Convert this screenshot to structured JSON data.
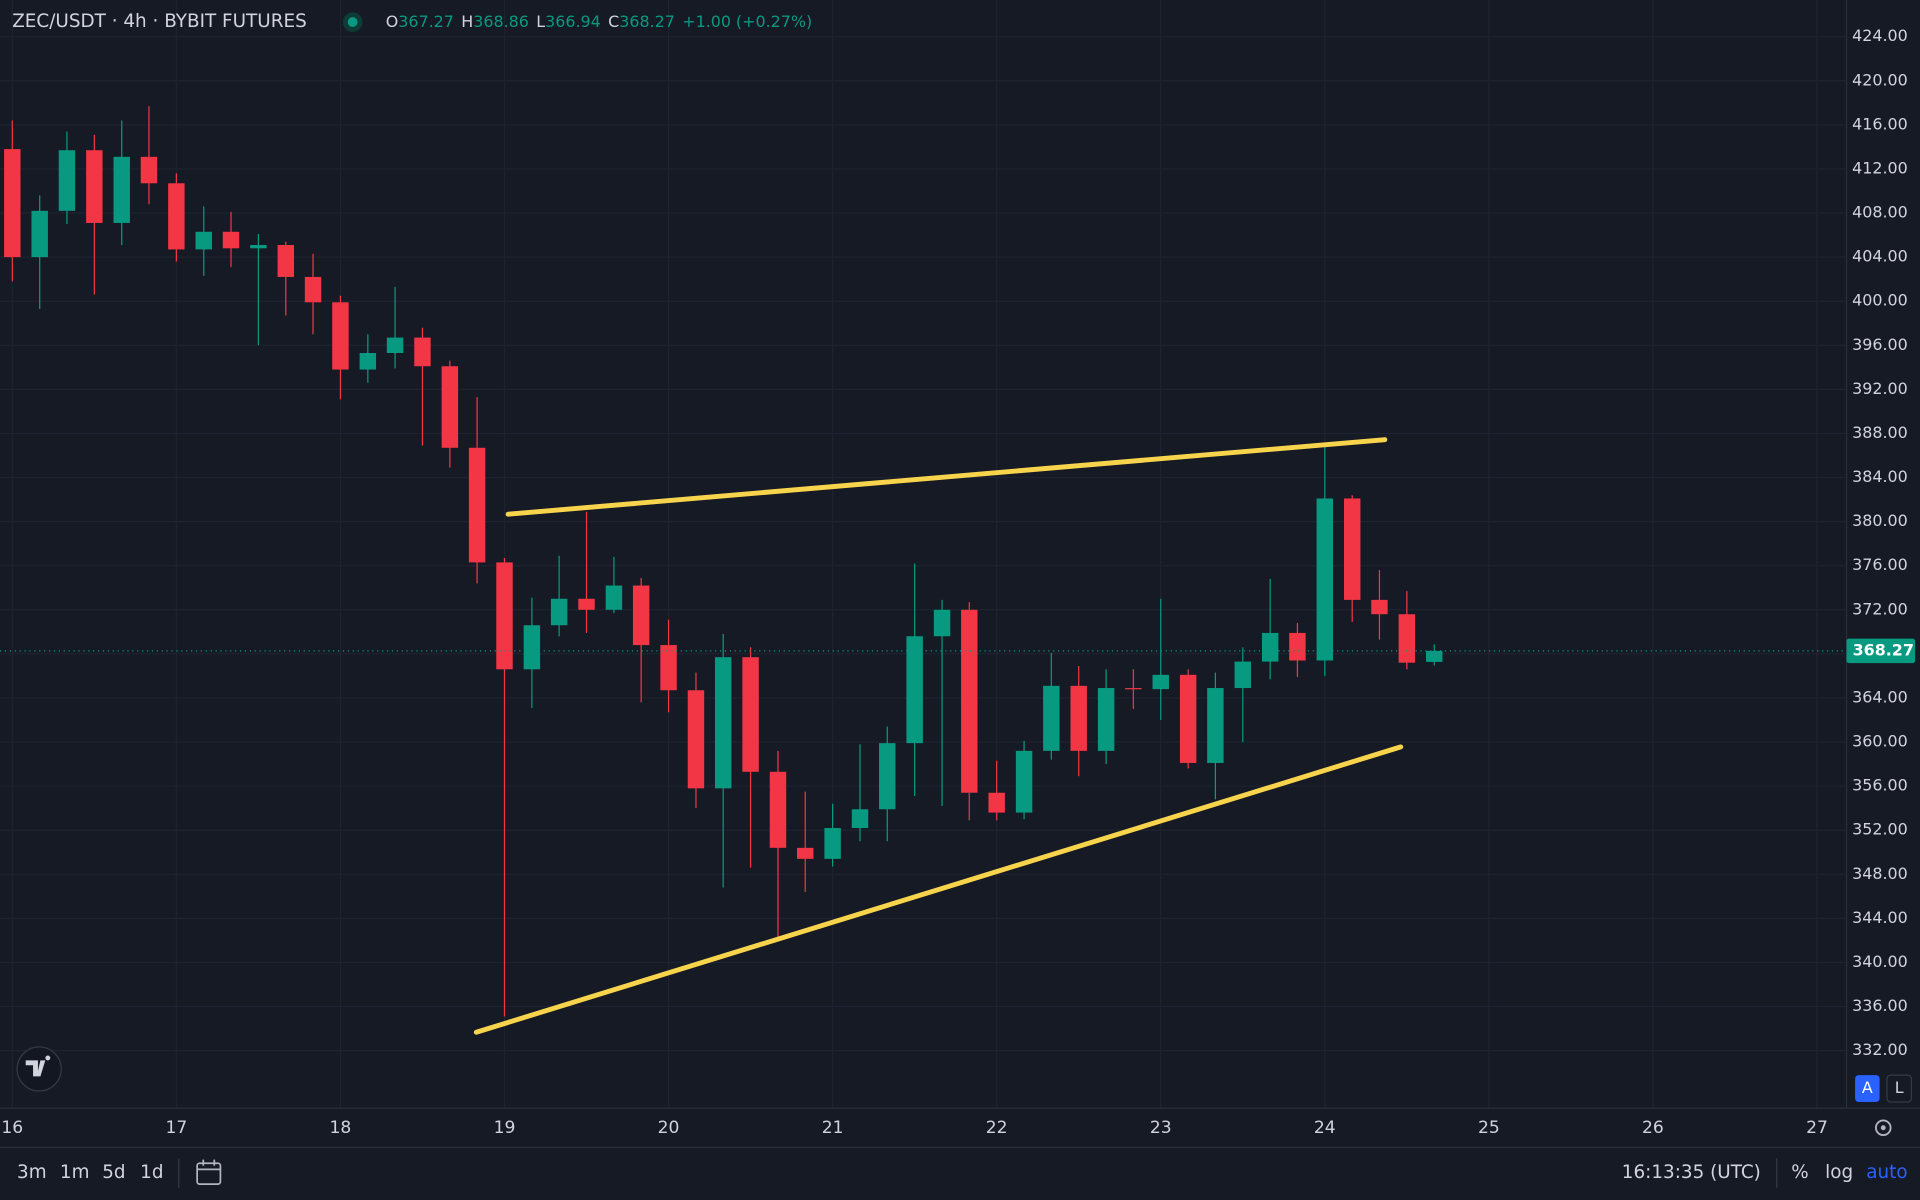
{
  "chart_data": {
    "type": "candlestick",
    "title": "ZEC/USDT · 4h · BYBIT FUTURES",
    "ohlc_legend": [
      {
        "label": "O",
        "value": 367.27
      },
      {
        "label": "H",
        "value": 368.86
      },
      {
        "label": "L",
        "value": 366.94
      },
      {
        "label": "C",
        "value": 368.27
      }
    ],
    "change": "+1.00",
    "change_pct": "(+0.27%)",
    "up_color": "#089981",
    "down_color": "#f23645",
    "x": [
      16,
      16.167,
      16.333,
      16.5,
      16.667,
      16.833,
      17,
      17.167,
      17.333,
      17.5,
      17.667,
      17.833,
      18,
      18.167,
      18.333,
      18.5,
      18.667,
      18.833,
      19,
      19.167,
      19.333,
      19.5,
      19.667,
      19.833,
      20,
      20.167,
      20.333,
      20.5,
      20.667,
      20.833,
      21,
      21.167,
      21.333,
      21.5,
      21.667,
      21.833,
      22,
      22.167,
      22.333,
      22.5,
      22.667,
      22.833,
      23,
      23.167,
      23.333,
      23.5,
      23.667,
      23.833,
      24,
      24.167,
      24.333,
      24.5,
      24.667
    ],
    "open": [
      413.8,
      404,
      408.2,
      413.7,
      407.1,
      413.1,
      410.7,
      404.7,
      406.3,
      404.8,
      405.1,
      402.2,
      399.9,
      393.8,
      395.3,
      396.7,
      394.1,
      386.7,
      376.3,
      366.6,
      370.6,
      373,
      372,
      374.2,
      368.8,
      364.7,
      355.8,
      367.7,
      357.3,
      350.4,
      349.4,
      352.2,
      353.9,
      359.9,
      369.6,
      372,
      355.4,
      353.6,
      359.2,
      365.1,
      359.2,
      364.9,
      364.8,
      366.1,
      358.1,
      364.9,
      367.3,
      369.9,
      367.4,
      382.1,
      372.9,
      371.6,
      367.27
    ],
    "high": [
      416.4,
      409.6,
      415.4,
      415.1,
      416.4,
      417.7,
      411.6,
      408.6,
      408.1,
      406.1,
      405.4,
      404.3,
      400.5,
      397,
      401.3,
      397.6,
      394.6,
      391.3,
      376.7,
      373.1,
      376.9,
      380.9,
      376.8,
      374.9,
      371.1,
      366.3,
      369.8,
      368.6,
      359.2,
      355.5,
      354.4,
      359.8,
      361.4,
      376.2,
      372.9,
      372.7,
      358.3,
      360.1,
      368.1,
      366.9,
      366.6,
      366.6,
      373,
      366.6,
      366.3,
      368.6,
      374.8,
      370.8,
      386.9,
      382.4,
      375.6,
      373.7,
      368.86
    ],
    "low": [
      401.8,
      399.3,
      407,
      400.6,
      405.1,
      408.8,
      403.6,
      402.3,
      403.1,
      396,
      398.7,
      397,
      391.1,
      392.6,
      393.9,
      386.9,
      384.9,
      374.4,
      335.1,
      363.1,
      369.6,
      369.9,
      371.7,
      363.6,
      362.7,
      354,
      346.8,
      348.6,
      342.1,
      346.4,
      348.7,
      351,
      351,
      355.1,
      354.2,
      352.9,
      352.9,
      353,
      358.4,
      356.9,
      358,
      363,
      362,
      357.6,
      354.8,
      360,
      365.7,
      365.9,
      366,
      370.9,
      369.3,
      366.6,
      366.94
    ],
    "close": [
      404,
      408.2,
      413.7,
      407.1,
      413.1,
      410.7,
      404.7,
      406.3,
      404.8,
      405.1,
      402.2,
      399.9,
      393.8,
      395.3,
      396.7,
      394.1,
      386.7,
      376.3,
      366.6,
      370.6,
      373,
      372,
      374.2,
      368.8,
      364.7,
      355.8,
      367.7,
      357.3,
      350.4,
      349.4,
      352.2,
      353.9,
      359.9,
      369.6,
      372,
      355.4,
      353.6,
      359.2,
      365.1,
      359.2,
      364.9,
      364.8,
      366.1,
      358.1,
      364.9,
      367.3,
      369.9,
      367.4,
      382.1,
      372.9,
      371.6,
      367.2,
      368.27
    ],
    "xlim": [
      15.925,
      27.18
    ],
    "xticks": [
      16,
      17,
      18,
      19,
      20,
      21,
      22,
      23,
      24,
      25,
      26,
      27
    ],
    "ylim": [
      326.78,
      427.33
    ],
    "yticks": [
      {
        "value": 424,
        "label": "424.00"
      },
      {
        "value": 420,
        "label": "420.00"
      },
      {
        "value": 416,
        "label": "416.00"
      },
      {
        "value": 412,
        "label": "412.00"
      },
      {
        "value": 408,
        "label": "408.00"
      },
      {
        "value": 404,
        "label": "404.00"
      },
      {
        "value": 400,
        "label": "400.00"
      },
      {
        "value": 396,
        "label": "396.00"
      },
      {
        "value": 392,
        "label": "392.00"
      },
      {
        "value": 388,
        "label": "388.00"
      },
      {
        "value": 384,
        "label": "384.00"
      },
      {
        "value": 380,
        "label": "380.00"
      },
      {
        "value": 376,
        "label": "376.00"
      },
      {
        "value": 372,
        "label": "372.00"
      },
      {
        "value": 368,
        "label": "368.00"
      },
      {
        "value": 364,
        "label": "364.00"
      },
      {
        "value": 360,
        "label": "360.00"
      },
      {
        "value": 356,
        "label": "356.00"
      },
      {
        "value": 352,
        "label": "352.00"
      },
      {
        "value": 348,
        "label": "348.00"
      },
      {
        "value": 344,
        "label": "344.00"
      },
      {
        "value": 340,
        "label": "340.00"
      },
      {
        "value": 336,
        "label": "336.00"
      },
      {
        "value": 332,
        "label": "332.00"
      }
    ],
    "grid": true,
    "last_price": {
      "value": 368.27,
      "label": "368.27"
    },
    "trendlines": [
      {
        "color": "#f7d44c",
        "x": [
          19.022,
          24.366
        ],
        "y": [
          380.67,
          387.44
        ]
      },
      {
        "color": "#f7d44c",
        "x": [
          18.828,
          24.463
        ],
        "y": [
          333.67,
          359.56
        ]
      }
    ]
  },
  "toolbar": {
    "ranges": [
      "3m",
      "1m",
      "5d",
      "1d"
    ],
    "clock": "16:13:35 (UTC)",
    "percent": "%",
    "log": "log",
    "auto": "auto",
    "scale_a": "A",
    "scale_l": "L"
  }
}
